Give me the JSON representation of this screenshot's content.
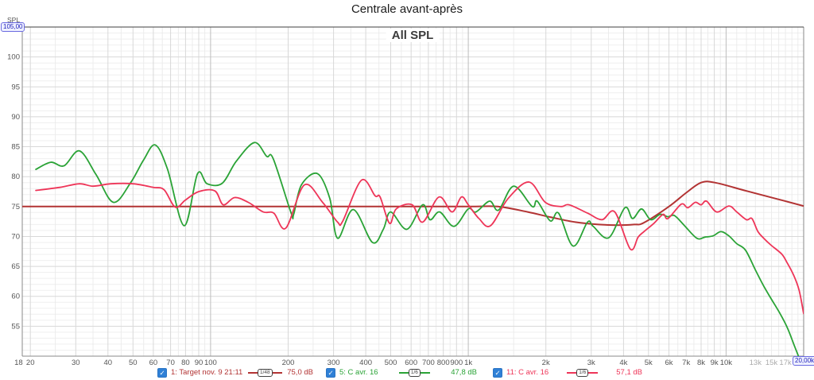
{
  "page_title": "Centrale avant-après",
  "chart": {
    "title": "All SPL",
    "axis_unit": "SPL",
    "y_max_readout": "105,00",
    "x_max_readout": "20,00k"
  },
  "legend": {
    "checkbox_color": "#2f80d6",
    "check_glyph": "✓",
    "items": [
      {
        "label": "1: Target nov. 9 21:11",
        "smoothing": "1/48",
        "value": "75,0 dB",
        "color": "#b23333",
        "checked": true
      },
      {
        "label": "5: C avr. 16",
        "smoothing": "1/6",
        "value": "47,8 dB",
        "color": "#2aa336",
        "checked": true
      },
      {
        "label": "11: C avr. 16",
        "smoothing": "1/6",
        "value": "57,1 dB",
        "color": "#ee3558",
        "checked": true
      }
    ]
  },
  "chart_data": {
    "type": "line",
    "title": "All SPL",
    "x_scale": "log",
    "x_min_hz": 18.6,
    "x_max_hz": 20000,
    "y_min_db": 50,
    "y_max_db": 105,
    "y_major_step_db": 5,
    "y_minor_step_db": 1,
    "y_major_ticks": [
      100,
      95,
      90,
      85,
      80,
      75,
      70,
      65,
      60,
      55
    ],
    "x_ticks": [
      {
        "hz": 18,
        "label": "18",
        "muted": false
      },
      {
        "hz": 20,
        "label": "20",
        "muted": false
      },
      {
        "hz": 30,
        "label": "30",
        "muted": false
      },
      {
        "hz": 40,
        "label": "40",
        "muted": false
      },
      {
        "hz": 50,
        "label": "50",
        "muted": false
      },
      {
        "hz": 60,
        "label": "60",
        "muted": false
      },
      {
        "hz": 70,
        "label": "70",
        "muted": false
      },
      {
        "hz": 80,
        "label": "80",
        "muted": false
      },
      {
        "hz": 90,
        "label": "90",
        "muted": false
      },
      {
        "hz": 100,
        "label": "100",
        "muted": false
      },
      {
        "hz": 200,
        "label": "200",
        "muted": false
      },
      {
        "hz": 300,
        "label": "300",
        "muted": false
      },
      {
        "hz": 400,
        "label": "400",
        "muted": false
      },
      {
        "hz": 500,
        "label": "500",
        "muted": false
      },
      {
        "hz": 600,
        "label": "600",
        "muted": false
      },
      {
        "hz": 700,
        "label": "700",
        "muted": false
      },
      {
        "hz": 800,
        "label": "800",
        "muted": false
      },
      {
        "hz": 900,
        "label": "900",
        "muted": false
      },
      {
        "hz": 1000,
        "label": "1k",
        "muted": false
      },
      {
        "hz": 2000,
        "label": "2k",
        "muted": false
      },
      {
        "hz": 3000,
        "label": "3k",
        "muted": false
      },
      {
        "hz": 4000,
        "label": "4k",
        "muted": false
      },
      {
        "hz": 5000,
        "label": "5k",
        "muted": false
      },
      {
        "hz": 6000,
        "label": "6k",
        "muted": false
      },
      {
        "hz": 7000,
        "label": "7k",
        "muted": false
      },
      {
        "hz": 8000,
        "label": "8k",
        "muted": false
      },
      {
        "hz": 9000,
        "label": "9k",
        "muted": false
      },
      {
        "hz": 10000,
        "label": "10k",
        "muted": false
      },
      {
        "hz": 13000,
        "label": "13k",
        "muted": true
      },
      {
        "hz": 15000,
        "label": "15k",
        "muted": true
      },
      {
        "hz": 17000,
        "label": "17k",
        "muted": true
      }
    ],
    "series": [
      {
        "name": "1: Target nov. 9 21:11",
        "color": "#b23333",
        "smoothing": "1/48",
        "cursor_value": "75,0 dB",
        "points": [
          [
            18.6,
            75
          ],
          [
            500,
            75
          ],
          [
            1000,
            75
          ],
          [
            1300,
            75
          ],
          [
            1700,
            74.1
          ],
          [
            2100,
            73.2
          ],
          [
            2600,
            72.4
          ],
          [
            3200,
            72
          ],
          [
            3800,
            71.9
          ],
          [
            4400,
            72
          ],
          [
            4800,
            72.3
          ],
          [
            6000,
            75.0
          ],
          [
            7000,
            77.3
          ],
          [
            8000,
            79
          ],
          [
            9050,
            79
          ],
          [
            12000,
            77.6
          ],
          [
            16000,
            76.2
          ],
          [
            20000,
            75.1
          ]
        ]
      },
      {
        "name": "5: C avr. 16",
        "color": "#2aa336",
        "smoothing": "1/6",
        "cursor_value": "47,8 dB",
        "points": [
          [
            21,
            81.2
          ],
          [
            24,
            82.4
          ],
          [
            27,
            81.8
          ],
          [
            31,
            84.3
          ],
          [
            36,
            80.3
          ],
          [
            42,
            75.7
          ],
          [
            49,
            79.0
          ],
          [
            55,
            82.8
          ],
          [
            61,
            85.3
          ],
          [
            68,
            81.3
          ],
          [
            79,
            71.8
          ],
          [
            89,
            80.5
          ],
          [
            97,
            78.8
          ],
          [
            111,
            78.9
          ],
          [
            126,
            82.6
          ],
          [
            148,
            85.7
          ],
          [
            165,
            83.4
          ],
          [
            175,
            83.0
          ],
          [
            205,
            74.0
          ],
          [
            210,
            73.7
          ],
          [
            225,
            78.6
          ],
          [
            260,
            80.5
          ],
          [
            290,
            76.4
          ],
          [
            311,
            69.7
          ],
          [
            358,
            74.5
          ],
          [
            425,
            69.0
          ],
          [
            468,
            71.2
          ],
          [
            500,
            74.1
          ],
          [
            578,
            71.2
          ],
          [
            665,
            75.3
          ],
          [
            710,
            72.8
          ],
          [
            775,
            74.1
          ],
          [
            880,
            71.7
          ],
          [
            1000,
            74.6
          ],
          [
            1070,
            74.1
          ],
          [
            1210,
            75.9
          ],
          [
            1310,
            74.4
          ],
          [
            1500,
            78.4
          ],
          [
            1770,
            75.0
          ],
          [
            1850,
            75.9
          ],
          [
            2080,
            72.6
          ],
          [
            2240,
            73.9
          ],
          [
            2550,
            68.4
          ],
          [
            2900,
            72.4
          ],
          [
            3050,
            71.7
          ],
          [
            3510,
            69.8
          ],
          [
            4050,
            74.8
          ],
          [
            4340,
            73.0
          ],
          [
            4700,
            74.6
          ],
          [
            5100,
            72.8
          ],
          [
            5550,
            73.7
          ],
          [
            5950,
            73.3
          ],
          [
            6300,
            73.5
          ],
          [
            6870,
            71.9
          ],
          [
            7700,
            69.7
          ],
          [
            8300,
            69.9
          ],
          [
            8900,
            70.1
          ],
          [
            9550,
            70.8
          ],
          [
            10250,
            70.1
          ],
          [
            11000,
            68.8
          ],
          [
            11900,
            67.7
          ],
          [
            13000,
            64.4
          ],
          [
            14000,
            61.7
          ],
          [
            15000,
            59.5
          ],
          [
            16100,
            57.3
          ],
          [
            17300,
            54.7
          ],
          [
            18500,
            51.5
          ],
          [
            19500,
            49.0
          ],
          [
            20000,
            47.8
          ]
        ]
      },
      {
        "name": "11: C avr. 16",
        "color": "#ee3558",
        "smoothing": "1/6",
        "cursor_value": "57,1 dB",
        "points": [
          [
            21,
            77.7
          ],
          [
            26,
            78.2
          ],
          [
            31,
            78.8
          ],
          [
            35,
            78.4
          ],
          [
            41,
            78.8
          ],
          [
            50,
            78.8
          ],
          [
            60,
            78.2
          ],
          [
            66,
            77.8
          ],
          [
            73,
            74.9
          ],
          [
            80,
            76.1
          ],
          [
            90,
            77.5
          ],
          [
            104,
            77.6
          ],
          [
            112,
            75.3
          ],
          [
            124,
            76.5
          ],
          [
            140,
            75.7
          ],
          [
            160,
            74.1
          ],
          [
            176,
            73.9
          ],
          [
            196,
            71.4
          ],
          [
            231,
            78.6
          ],
          [
            272,
            75.7
          ],
          [
            311,
            72.4
          ],
          [
            326,
            72.6
          ],
          [
            385,
            79.4
          ],
          [
            435,
            76.8
          ],
          [
            455,
            76.6
          ],
          [
            495,
            72.2
          ],
          [
            525,
            74.6
          ],
          [
            605,
            75.3
          ],
          [
            665,
            72.4
          ],
          [
            770,
            76.6
          ],
          [
            865,
            74.1
          ],
          [
            940,
            76.6
          ],
          [
            1000,
            75.3
          ],
          [
            1100,
            73.0
          ],
          [
            1220,
            71.8
          ],
          [
            1430,
            76.4
          ],
          [
            1720,
            79.1
          ],
          [
            1990,
            75.7
          ],
          [
            2290,
            75.0
          ],
          [
            2460,
            75.3
          ],
          [
            2900,
            73.9
          ],
          [
            3300,
            72.8
          ],
          [
            3700,
            74.1
          ],
          [
            4250,
            67.9
          ],
          [
            4560,
            69.9
          ],
          [
            4800,
            70.8
          ],
          [
            5250,
            72.2
          ],
          [
            5700,
            73.7
          ],
          [
            5950,
            73.0
          ],
          [
            6700,
            75.4
          ],
          [
            7100,
            74.8
          ],
          [
            7600,
            75.7
          ],
          [
            8000,
            75.3
          ],
          [
            8400,
            75.9
          ],
          [
            9200,
            74.1
          ],
          [
            10250,
            75.1
          ],
          [
            11000,
            74.1
          ],
          [
            12000,
            72.8
          ],
          [
            12600,
            73.0
          ],
          [
            13300,
            70.8
          ],
          [
            14000,
            69.7
          ],
          [
            14900,
            68.6
          ],
          [
            16400,
            67.1
          ],
          [
            17200,
            65.7
          ],
          [
            18300,
            63.5
          ],
          [
            19200,
            61.0
          ],
          [
            20000,
            57.1
          ]
        ]
      }
    ]
  }
}
